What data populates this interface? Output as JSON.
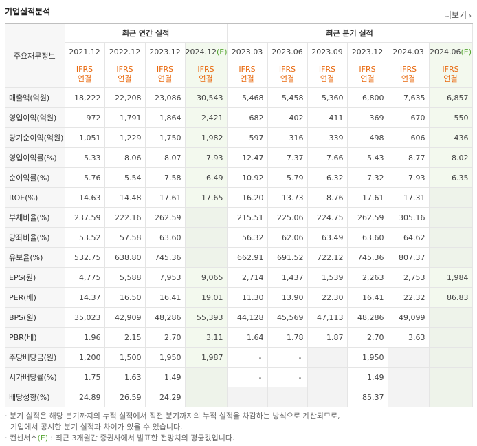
{
  "header": {
    "title": "기업실적분석",
    "more_label": "더보기"
  },
  "table": {
    "label_header": "주요재무정보",
    "groups": {
      "annual": "최근 연간 실적",
      "quarter": "최근 분기 실적"
    },
    "annual_periods": [
      {
        "label": "2021.12",
        "est": ""
      },
      {
        "label": "2022.12",
        "est": ""
      },
      {
        "label": "2023.12",
        "est": ""
      },
      {
        "label": "2024.12",
        "est": "(E)"
      }
    ],
    "quarter_periods": [
      {
        "label": "2023.03",
        "est": ""
      },
      {
        "label": "2023.06",
        "est": ""
      },
      {
        "label": "2023.09",
        "est": ""
      },
      {
        "label": "2023.12",
        "est": ""
      },
      {
        "label": "2024.03",
        "est": ""
      },
      {
        "label": "2024.06",
        "est": "(E)"
      }
    ],
    "ifrs_line1": "IFRS",
    "ifrs_line2": "연결",
    "rows": [
      {
        "label": "매출액(억원)",
        "values": [
          "18,222",
          "22,208",
          "23,086",
          "30,543",
          "5,468",
          "5,458",
          "5,360",
          "6,800",
          "7,635",
          "6,857"
        ]
      },
      {
        "label": "영업이익(억원)",
        "values": [
          "972",
          "1,791",
          "1,864",
          "2,421",
          "682",
          "402",
          "411",
          "369",
          "670",
          "550"
        ]
      },
      {
        "label": "당기순이익(억원)",
        "values": [
          "1,051",
          "1,229",
          "1,750",
          "1,982",
          "597",
          "316",
          "339",
          "498",
          "606",
          "436"
        ]
      },
      {
        "label": "영업이익률(%)",
        "values": [
          "5.33",
          "8.06",
          "8.07",
          "7.93",
          "12.47",
          "7.37",
          "7.66",
          "5.43",
          "8.77",
          "8.02"
        ]
      },
      {
        "label": "순이익률(%)",
        "values": [
          "5.76",
          "5.54",
          "7.58",
          "6.49",
          "10.92",
          "5.79",
          "6.32",
          "7.32",
          "7.93",
          "6.35"
        ]
      },
      {
        "label": "ROE(%)",
        "values": [
          "14.63",
          "14.48",
          "17.61",
          "17.65",
          "16.20",
          "13.73",
          "8.76",
          "17.61",
          "17.31",
          ""
        ]
      },
      {
        "label": "부채비율(%)",
        "values": [
          "237.59",
          "222.16",
          "262.59",
          "",
          "215.51",
          "225.06",
          "224.75",
          "262.59",
          "305.16",
          ""
        ]
      },
      {
        "label": "당좌비율(%)",
        "values": [
          "53.52",
          "57.58",
          "63.60",
          "",
          "56.32",
          "62.06",
          "63.49",
          "63.60",
          "64.62",
          ""
        ]
      },
      {
        "label": "유보율(%)",
        "values": [
          "532.75",
          "638.80",
          "745.36",
          "",
          "662.91",
          "691.52",
          "722.12",
          "745.36",
          "807.37",
          ""
        ]
      },
      {
        "label": "EPS(원)",
        "values": [
          "4,775",
          "5,588",
          "7,953",
          "9,065",
          "2,714",
          "1,437",
          "1,539",
          "2,263",
          "2,753",
          "1,984"
        ]
      },
      {
        "label": "PER(배)",
        "values": [
          "14.37",
          "16.50",
          "16.41",
          "19.01",
          "11.30",
          "13.90",
          "22.30",
          "16.41",
          "22.32",
          "86.83"
        ]
      },
      {
        "label": "BPS(원)",
        "values": [
          "35,023",
          "42,909",
          "48,286",
          "55,393",
          "44,128",
          "45,569",
          "47,113",
          "48,286",
          "49,099",
          ""
        ]
      },
      {
        "label": "PBR(배)",
        "values": [
          "1.96",
          "2.15",
          "2.70",
          "3.11",
          "1.64",
          "1.78",
          "1.87",
          "2.70",
          "3.63",
          ""
        ]
      },
      {
        "label": "주당배당금(원)",
        "values": [
          "1,200",
          "1,500",
          "1,950",
          "1,987",
          "-",
          "-",
          "",
          "1,950",
          "",
          ""
        ]
      },
      {
        "label": "시가배당률(%)",
        "values": [
          "1.75",
          "1.63",
          "1.49",
          "",
          "-",
          "-",
          "",
          "1.49",
          "",
          ""
        ]
      },
      {
        "label": "배당성향(%)",
        "values": [
          "24.89",
          "26.59",
          "24.29",
          "",
          "",
          "",
          "",
          "85.37",
          "",
          ""
        ]
      }
    ]
  },
  "notes": {
    "line1": "· 분기 실적은 해당 분기까지의 누적 실적에서 직전 분기까지의 누적 실적을 차감하는 방식으로 계산되므로,",
    "line2": "기업에서 공시한 분기 실적과 차이가 있을 수 있습니다.",
    "line3_prefix": "· 컨센서스",
    "line3_mark": "(E)",
    "line3_suffix": " : 최근 3개월간 증권사에서 발표한 전망치의 평균값입니다."
  }
}
